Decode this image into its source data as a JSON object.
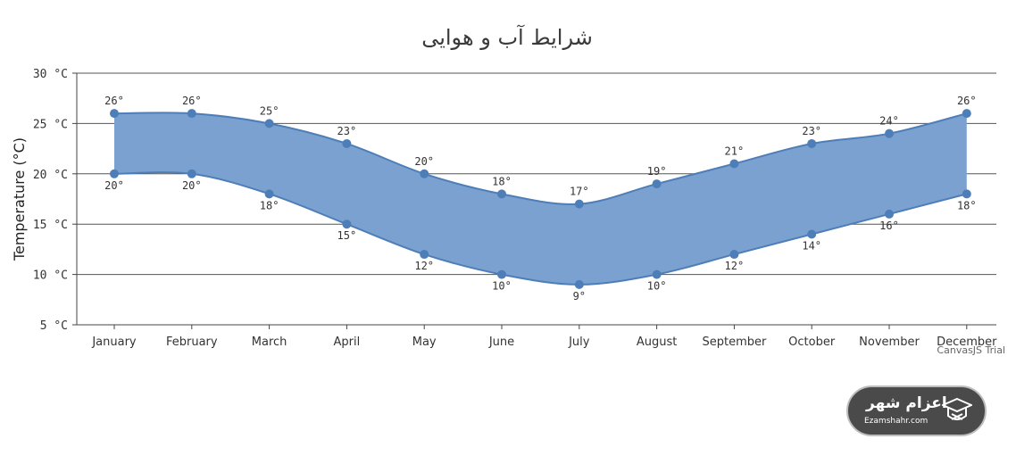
{
  "chart_data": {
    "type": "range-spline-area",
    "title": "شرایط آب و هوایی",
    "ylabel": "Temperature (°C)",
    "ylim": [
      5,
      30
    ],
    "yinterval": 5,
    "ytick_labels": [
      "5 °C",
      "10 °C",
      "15 °C",
      "20 °C",
      "25 °C",
      "30 °C"
    ],
    "categories": [
      "January",
      "February",
      "March",
      "April",
      "May",
      "June",
      "July",
      "August",
      "September",
      "October",
      "November",
      "December"
    ],
    "low": [
      20,
      20,
      18,
      15,
      12,
      10,
      9,
      10,
      12,
      14,
      16,
      18
    ],
    "high": [
      26,
      26,
      25,
      23,
      20,
      18,
      17,
      19,
      21,
      23,
      24,
      26
    ],
    "low_labels": [
      "20°",
      "20°",
      "18°",
      "15°",
      "12°",
      "10°",
      "9°",
      "10°",
      "12°",
      "14°",
      "16°",
      "18°"
    ],
    "high_labels": [
      "26°",
      "26°",
      "25°",
      "23°",
      "20°",
      "18°",
      "17°",
      "19°",
      "21°",
      "23°",
      "24°",
      "26°"
    ],
    "grid": true,
    "colors": {
      "fill": "#7ba1d0",
      "line": "#4e7eb8",
      "marker": "#4e7eb8",
      "grid": "#555555"
    }
  },
  "credit": "CanvasJS Trial",
  "watermark": {
    "name_fa": "اعزام شهر",
    "name_en": "Ezamshahr.com",
    "icon": "graduation-cap-icon"
  }
}
